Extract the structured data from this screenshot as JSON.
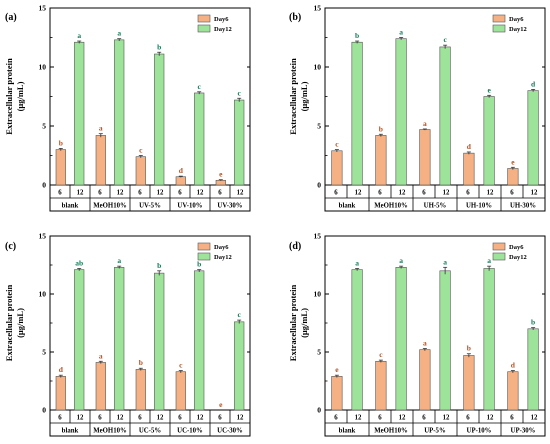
{
  "chart_data": [
    {
      "type": "bar",
      "panel": "(a)",
      "ylabel_lines": [
        "Extracellular protein",
        "(μg/mL)"
      ],
      "ylim": [
        0,
        15
      ],
      "yticks": [
        0,
        5,
        10,
        15
      ],
      "groups": [
        "blank",
        "MeOH10%",
        "UV-5%",
        "UV-10%",
        "UV-30%"
      ],
      "bar_labels": [
        "6",
        "12"
      ],
      "series": [
        {
          "name": "Day6",
          "values": [
            3.0,
            4.2,
            2.4,
            0.7,
            0.4
          ],
          "errors": [
            0.1,
            0.15,
            0.1,
            0.05,
            0.05
          ],
          "letters": [
            "b",
            "a",
            "c",
            "d",
            "e"
          ],
          "color": "#f5b183",
          "letter_color": "#b05020"
        },
        {
          "name": "Day12",
          "values": [
            12.1,
            12.3,
            11.1,
            7.8,
            7.2
          ],
          "errors": [
            0.1,
            0.1,
            0.15,
            0.1,
            0.15
          ],
          "letters": [
            "a",
            "a",
            "b",
            "c",
            "c"
          ],
          "color": "#9ee39a",
          "letter_color": "#0a7a55"
        }
      ],
      "legend": "top-right"
    },
    {
      "type": "bar",
      "panel": "(b)",
      "ylabel_lines": [
        "Extracellular protein",
        "(μg/mL)"
      ],
      "ylim": [
        0,
        15
      ],
      "yticks": [
        0,
        5,
        10,
        15
      ],
      "groups": [
        "blank",
        "MeOH10%",
        "UH-5%",
        "UH-10%",
        "UH-30%"
      ],
      "bar_labels": [
        "6",
        "12"
      ],
      "series": [
        {
          "name": "Day6",
          "values": [
            2.9,
            4.2,
            4.7,
            2.7,
            1.4
          ],
          "errors": [
            0.1,
            0.1,
            0.05,
            0.1,
            0.1
          ],
          "letters": [
            "c",
            "b",
            "a",
            "d",
            "e"
          ],
          "color": "#f5b183",
          "letter_color": "#b05020"
        },
        {
          "name": "Day12",
          "values": [
            12.1,
            12.4,
            11.7,
            7.5,
            8.0
          ],
          "errors": [
            0.1,
            0.1,
            0.15,
            0.1,
            0.1
          ],
          "letters": [
            "b",
            "a",
            "c",
            "e",
            "d"
          ],
          "color": "#9ee39a",
          "letter_color": "#0a7a55"
        }
      ],
      "legend": "top-right"
    },
    {
      "type": "bar",
      "panel": "(c)",
      "ylabel_lines": [
        "Extracellular protein",
        "(μg/mL)"
      ],
      "ylim": [
        0,
        15
      ],
      "yticks": [
        0,
        5,
        10,
        15
      ],
      "groups": [
        "blank",
        "MeOH10%",
        "UC-5%",
        "UC-10%",
        "UC-30%"
      ],
      "bar_labels": [
        "6",
        "12"
      ],
      "series": [
        {
          "name": "Day6",
          "values": [
            2.9,
            4.1,
            3.5,
            3.3,
            0.0
          ],
          "errors": [
            0.1,
            0.1,
            0.1,
            0.1,
            0.0
          ],
          "letters": [
            "d",
            "a",
            "b",
            "c",
            "e"
          ],
          "color": "#f5b183",
          "letter_color": "#b05020"
        },
        {
          "name": "Day12",
          "values": [
            12.1,
            12.3,
            11.8,
            12.0,
            7.6
          ],
          "errors": [
            0.1,
            0.1,
            0.2,
            0.1,
            0.15
          ],
          "letters": [
            "ab",
            "a",
            "b",
            "b",
            "c"
          ],
          "color": "#9ee39a",
          "letter_color": "#0a7a55"
        }
      ],
      "legend": "top-right"
    },
    {
      "type": "bar",
      "panel": "(d)",
      "ylabel_lines": [
        "Extracellular protein",
        "(μg/mL)"
      ],
      "ylim": [
        0,
        15
      ],
      "yticks": [
        0,
        5,
        10,
        15
      ],
      "groups": [
        "blank",
        "MeOH10%",
        "UP-5%",
        "UP-10%",
        "UP-30%"
      ],
      "bar_labels": [
        "6",
        "12"
      ],
      "series": [
        {
          "name": "Day6",
          "values": [
            2.9,
            4.2,
            5.2,
            4.7,
            3.3
          ],
          "errors": [
            0.1,
            0.1,
            0.1,
            0.15,
            0.1
          ],
          "letters": [
            "e",
            "c",
            "a",
            "b",
            "d"
          ],
          "color": "#f5b183",
          "letter_color": "#b05020"
        },
        {
          "name": "Day12",
          "values": [
            12.1,
            12.3,
            12.0,
            12.2,
            7.0
          ],
          "errors": [
            0.1,
            0.1,
            0.3,
            0.2,
            0.1
          ],
          "letters": [
            "a",
            "a",
            "a",
            "a",
            "b"
          ],
          "color": "#9ee39a",
          "letter_color": "#0a7a55"
        }
      ],
      "legend": "top-right"
    }
  ]
}
